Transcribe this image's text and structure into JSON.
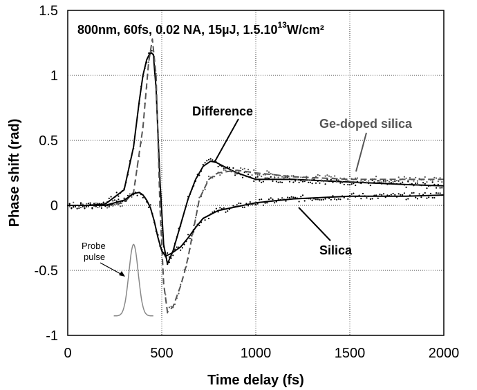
{
  "chart_data": {
    "type": "line",
    "title": "800nm, 60fs, 0.02 NA, 15µJ, 1.5.10",
    "title_exp": "13",
    "title_unit": "W/cm²",
    "xlabel": "Time delay (fs)",
    "ylabel": "Phase shift (rad)",
    "xlim": [
      0,
      2000
    ],
    "ylim": [
      -1,
      1.5
    ],
    "x_ticks": [
      0,
      500,
      1000,
      1500,
      2000
    ],
    "x_tick_labels": [
      "0",
      "500",
      "1000",
      "1500",
      "2000"
    ],
    "y_ticks": [
      -1,
      -0.5,
      0,
      0.5,
      1,
      1.5
    ],
    "y_tick_labels": [
      "-1",
      "-0.5",
      "0",
      "0.5",
      "1",
      "1.5"
    ],
    "grid": "dotted",
    "series": [
      {
        "name": "Difference",
        "style": "solid",
        "color": "#000000",
        "x": [
          0,
          100,
          200,
          300,
          350,
          380,
          400,
          420,
          440,
          455,
          470,
          490,
          510,
          530,
          560,
          600,
          640,
          680,
          720,
          760,
          790,
          830,
          900,
          1000,
          1200,
          1500,
          1800,
          2000
        ],
        "y": [
          0,
          0,
          0.01,
          0.12,
          0.45,
          0.8,
          1.0,
          1.12,
          1.18,
          1.16,
          0.9,
          0.2,
          -0.3,
          -0.45,
          -0.35,
          -0.15,
          0.05,
          0.2,
          0.3,
          0.34,
          0.33,
          0.3,
          0.25,
          0.2,
          0.2,
          0.18,
          0.16,
          0.15
        ]
      },
      {
        "name": "Ge-doped silica",
        "style": "dashed",
        "color": "#555555",
        "x": [
          0,
          200,
          300,
          350,
          400,
          430,
          450,
          470,
          490,
          510,
          530,
          560,
          600,
          620,
          640,
          660,
          680,
          700,
          750,
          800,
          900,
          1000,
          1200,
          1500,
          1800,
          2000
        ],
        "y": [
          0,
          0,
          0.02,
          0.1,
          0.6,
          1.1,
          1.28,
          1.0,
          0.0,
          -0.6,
          -0.82,
          -0.78,
          -0.62,
          -0.52,
          -0.4,
          -0.25,
          -0.1,
          0.05,
          0.2,
          0.25,
          0.27,
          0.25,
          0.22,
          0.2,
          0.2,
          0.2
        ]
      },
      {
        "name": "Silica",
        "style": "solid",
        "color": "#000000",
        "x": [
          0,
          200,
          300,
          350,
          380,
          400,
          420,
          440,
          460,
          480,
          500,
          520,
          550,
          600,
          640,
          680,
          720,
          800,
          900,
          1000,
          1200,
          1500,
          1800,
          2000
        ],
        "y": [
          0,
          0,
          0.04,
          0.09,
          0.1,
          0.08,
          0.04,
          -0.02,
          -0.12,
          -0.25,
          -0.35,
          -0.39,
          -0.37,
          -0.32,
          -0.25,
          -0.17,
          -0.1,
          -0.04,
          -0.01,
          0.02,
          0.05,
          0.07,
          0.07,
          0.08
        ]
      }
    ],
    "annotations": {
      "difference": "Difference",
      "ge_doped": "Ge-doped silica",
      "silica": "Silica",
      "probe_line1": "Probe",
      "probe_line2": "pulse"
    },
    "probe_pulse": {
      "center": 350,
      "width": 35,
      "height": 0.55,
      "base": -0.85,
      "color": "#888888"
    }
  }
}
